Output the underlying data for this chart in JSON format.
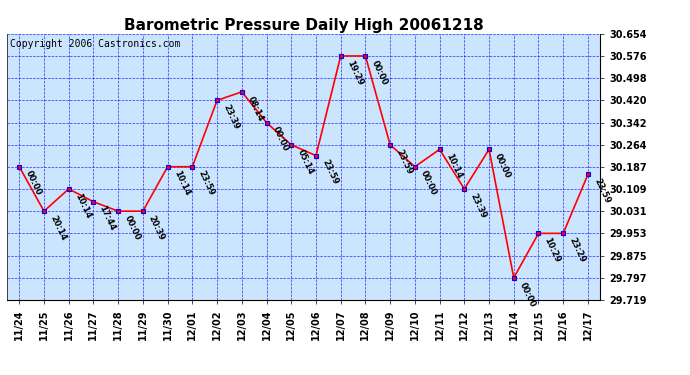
{
  "title": "Barometric Pressure Daily High 20061218",
  "copyright": "Copyright 2006 Castronics.com",
  "x_labels": [
    "11/24",
    "11/25",
    "11/26",
    "11/27",
    "11/28",
    "11/29",
    "11/30",
    "12/01",
    "12/02",
    "12/03",
    "12/04",
    "12/05",
    "12/06",
    "12/07",
    "12/08",
    "12/09",
    "12/10",
    "12/11",
    "12/12",
    "12/13",
    "12/14",
    "12/15",
    "12/16",
    "12/17"
  ],
  "y_values": [
    30.187,
    30.031,
    30.109,
    30.064,
    30.031,
    30.031,
    30.187,
    30.187,
    30.42,
    30.45,
    30.342,
    30.264,
    30.226,
    30.576,
    30.576,
    30.264,
    30.187,
    30.248,
    30.109,
    30.248,
    29.797,
    29.953,
    29.953,
    30.16
  ],
  "point_labels": [
    "00:00",
    "20:14",
    "10:14",
    "17:44",
    "00:00",
    "20:39",
    "10:14",
    "23:59",
    "23:39",
    "08:14",
    "00:00",
    "05:14",
    "23:59",
    "19:29",
    "00:00",
    "23:59",
    "00:00",
    "10:14",
    "23:39",
    "00:00",
    "00:00",
    "10:29",
    "23:29",
    "23:59"
  ],
  "ylim_min": 29.719,
  "ylim_max": 30.654,
  "yticks": [
    29.719,
    29.797,
    29.875,
    29.953,
    30.031,
    30.109,
    30.187,
    30.264,
    30.342,
    30.42,
    30.498,
    30.576,
    30.654
  ],
  "line_color": "red",
  "marker_color": "blue",
  "marker_face": "red",
  "bg_color": "#cce5ff",
  "grid_color": "blue",
  "title_fontsize": 11,
  "copyright_fontsize": 7,
  "label_fontsize": 6,
  "tick_fontsize": 7
}
